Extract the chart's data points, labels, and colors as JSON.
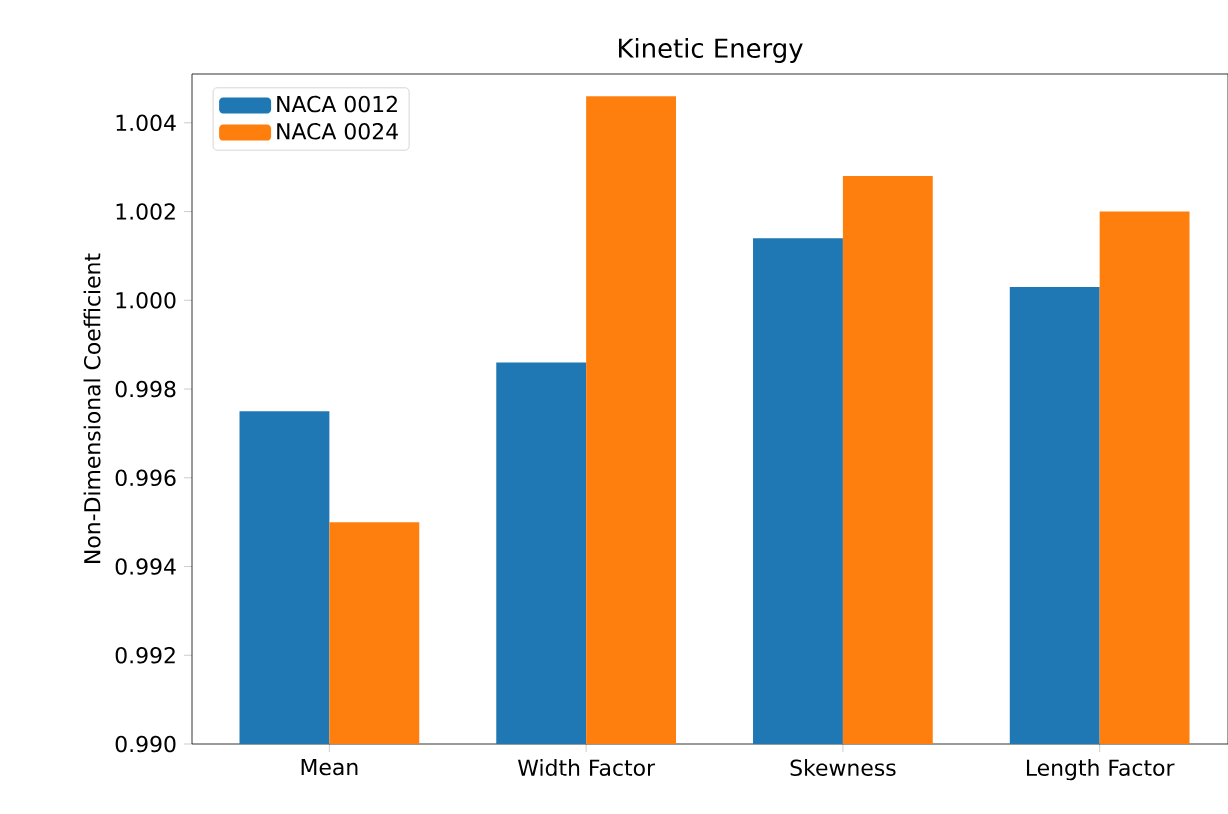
{
  "chart_data": {
    "type": "bar",
    "title": "Kinetic Energy",
    "ylabel": "Non-Dimensional Coefficient",
    "categories": [
      "Mean",
      "Width Factor",
      "Skewness",
      "Length Factor"
    ],
    "series": [
      {
        "name": "NACA 0012",
        "color": "#1f77b4",
        "values": [
          0.9975,
          0.9986,
          1.0014,
          1.0003
        ]
      },
      {
        "name": "NACA 0024",
        "color": "#ff7f0e",
        "values": [
          0.995,
          1.0046,
          1.0028,
          1.002
        ]
      }
    ],
    "ylim": [
      0.99,
      1.0051
    ],
    "yticks": [
      {
        "value": 0.99,
        "label": "0.990"
      },
      0.992,
      0.994,
      0.996,
      0.998,
      {
        "value": 1.0,
        "label": "1.000"
      },
      1.002,
      1.004
    ],
    "legend": "top left",
    "grid": false
  }
}
